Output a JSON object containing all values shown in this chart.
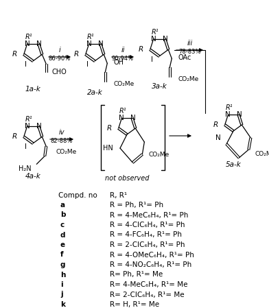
{
  "background_color": "#ffffff",
  "figsize": [
    3.92,
    4.49
  ],
  "dpi": 100,
  "compounds": [
    {
      "letter": "a",
      "text": "R = Ph, R¹= Ph"
    },
    {
      "letter": "b",
      "text": "R = 4-MeC₆H₄, R¹= Ph"
    },
    {
      "letter": "c",
      "text": "R = 4-ClC₆H₄, R¹= Ph"
    },
    {
      "letter": "d",
      "text": "R = 4-FC₆H₄, R¹= Ph"
    },
    {
      "letter": "e",
      "text": "R = 2-ClC₆H₄, R¹= Ph"
    },
    {
      "letter": "f",
      "text": "R = 4-OMeC₆H₄, R¹= Ph"
    },
    {
      "letter": "g",
      "text": "R = 4-NO₂C₆H₄, R¹= Ph"
    },
    {
      "letter": "h",
      "text": "R= Ph, R¹= Me"
    },
    {
      "letter": "i",
      "text": "R= 4-MeC₆H₄, R¹= Me"
    },
    {
      "letter": "j",
      "text": "R= 2-ClC₆H₄, R¹= Me"
    },
    {
      "letter": "k",
      "text": "R= H, R¹= Me"
    }
  ]
}
